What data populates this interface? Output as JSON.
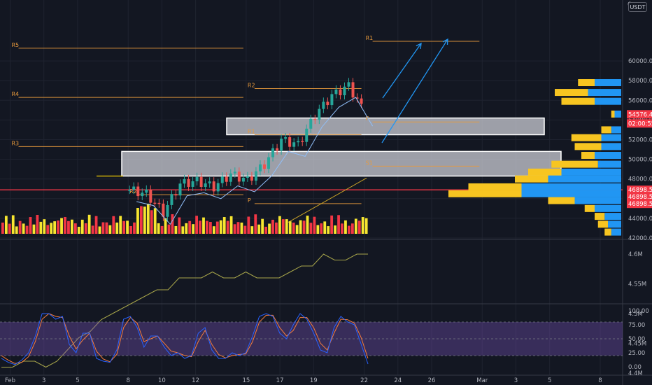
{
  "header": {
    "currency": "USDT"
  },
  "price_axis": {
    "top_tick": "6"
  },
  "chart_data": [
    {
      "type": "candlestick",
      "title": "",
      "x_dates": [
        "Feb 8",
        "Feb 9",
        "Feb 10",
        "Feb 11",
        "Feb 12",
        "Feb 13",
        "Feb 14",
        "Feb 15",
        "Feb 16",
        "Feb 17",
        "Feb 18",
        "Feb 19",
        "Feb 20",
        "Feb 21",
        "Feb 22"
      ],
      "close_path": [
        {
          "date": "Feb 8",
          "value": 46900
        },
        {
          "date": "Feb 9",
          "value": 46500
        },
        {
          "date": "Feb 10",
          "value": 44600
        },
        {
          "date": "Feb 11",
          "value": 47500
        },
        {
          "date": "Feb 12",
          "value": 47800
        },
        {
          "date": "Feb 13",
          "value": 47200
        },
        {
          "date": "Feb 14",
          "value": 48500
        },
        {
          "date": "Feb 15",
          "value": 47900
        },
        {
          "date": "Feb 16",
          "value": 49500
        },
        {
          "date": "Feb 17",
          "value": 52000
        },
        {
          "date": "Feb 18",
          "value": 51500
        },
        {
          "date": "Feb 19",
          "value": 54500
        },
        {
          "date": "Feb 20",
          "value": 56500
        },
        {
          "date": "Feb 21",
          "value": 57500
        },
        {
          "date": "Feb 22",
          "value": 54576.48
        }
      ],
      "ylim": [
        42000,
        62000
      ],
      "price_ticks": [
        "42000.00",
        "44000.00",
        "46000.00",
        "48000.00",
        "50000.00",
        "52000.00",
        "54000.00",
        "56000.00",
        "58000.00",
        "60000.00"
      ],
      "x_ticks": [
        {
          "label": "Feb",
          "date": "Feb 1"
        },
        {
          "label": "3",
          "date": "Feb 3"
        },
        {
          "label": "5",
          "date": "Feb 5"
        },
        {
          "label": "8",
          "date": "Feb 8"
        },
        {
          "label": "10",
          "date": "Feb 10"
        },
        {
          "label": "12",
          "date": "Feb 12"
        },
        {
          "label": "15",
          "date": "Feb 15"
        },
        {
          "label": "17",
          "date": "Feb 17"
        },
        {
          "label": "19",
          "date": "Feb 19"
        },
        {
          "label": "22",
          "date": "Feb 22"
        },
        {
          "label": "24",
          "date": "Feb 24"
        },
        {
          "label": "26",
          "date": "Feb 26"
        },
        {
          "label": "Mar",
          "date": "Mar 1"
        },
        {
          "label": "3",
          "date": "Mar 3"
        },
        {
          "label": "5",
          "date": "Mar 5"
        },
        {
          "label": "8",
          "date": "Mar 8"
        }
      ],
      "last_price": "54576.48",
      "countdown": "02:00:55",
      "support_line": {
        "value": 46898.56,
        "labels": [
          "46898.56",
          "46898.56",
          "46898.56"
        ]
      },
      "zones": [
        {
          "name": "upper-zone",
          "from_date": "Feb 15",
          "to_date": "Mar 4",
          "low": 52500,
          "high": 54200
        },
        {
          "name": "lower-zone",
          "from_date": "Feb 8",
          "to_date": "Mar 4",
          "low": 48300,
          "high": 50800
        }
      ],
      "pivot_levels": [
        {
          "label": "R5",
          "value": 61300,
          "from_date": "Feb 1",
          "to_date": "Feb 15"
        },
        {
          "label": "R4",
          "value": 56300,
          "from_date": "Feb 1",
          "to_date": "Feb 15"
        },
        {
          "label": "R3",
          "value": 51300,
          "from_date": "Feb 1",
          "to_date": "Feb 15"
        },
        {
          "label": "R2",
          "value": 46400,
          "from_date": "Feb 8",
          "to_date": "Feb 15"
        },
        {
          "label": "P",
          "value": 45500,
          "from_date": "Feb 15",
          "to_date": "Feb 22"
        },
        {
          "label": "R2",
          "value": 57200,
          "from_date": "Feb 15",
          "to_date": "Feb 22"
        },
        {
          "label": "R1",
          "value": 52500,
          "from_date": "Feb 15",
          "to_date": "Feb 22"
        },
        {
          "label": "R1",
          "value": 62000,
          "from_date": "Feb 22",
          "to_date": "Mar 1"
        },
        {
          "label": "P",
          "value": 53800,
          "from_date": "Feb 22",
          "to_date": "Mar 1"
        },
        {
          "label": "S1",
          "value": 49300,
          "from_date": "Feb 22",
          "to_date": "Mar 1"
        }
      ],
      "volume_profile": [
        {
          "price": 57800,
          "buy": 400,
          "sell": 250
        },
        {
          "price": 56800,
          "buy": 500,
          "sell": 500
        },
        {
          "price": 55900,
          "buy": 400,
          "sell": 500
        },
        {
          "price": 54600,
          "buy": 100,
          "sell": 50
        },
        {
          "price": 53000,
          "buy": 150,
          "sell": 150
        },
        {
          "price": 52200,
          "buy": 300,
          "sell": 450
        },
        {
          "price": 51300,
          "buy": 300,
          "sell": 400
        },
        {
          "price": 50400,
          "buy": 400,
          "sell": 200
        },
        {
          "price": 49500,
          "buy": 350,
          "sell": 700
        },
        {
          "price": 48700,
          "buy": 900,
          "sell": 500
        },
        {
          "price": 48000,
          "buy": 1100,
          "sell": 500
        },
        {
          "price": 47200,
          "buy": 1500,
          "sell": 800
        },
        {
          "price": 46500,
          "buy": 1500,
          "sell": 1100
        },
        {
          "price": 45800,
          "buy": 700,
          "sell": 400
        },
        {
          "price": 45000,
          "buy": 400,
          "sell": 150
        },
        {
          "price": 44200,
          "buy": 250,
          "sell": 150
        },
        {
          "price": 43400,
          "buy": 200,
          "sell": 150
        },
        {
          "price": 42600,
          "buy": 150,
          "sell": 100
        }
      ]
    },
    {
      "type": "line",
      "title": "",
      "ylim": [
        4.38,
        4.62
      ],
      "y_ticks": [
        "4.6M",
        "4.55M",
        "4.5M",
        "4.45M",
        "4.4M"
      ],
      "values": [
        4.41,
        4.41,
        4.42,
        4.42,
        4.41,
        4.42,
        4.44,
        4.46,
        4.47,
        4.49,
        4.5,
        4.51,
        4.52,
        4.53,
        4.54,
        4.54,
        4.56,
        4.56,
        4.56,
        4.57,
        4.56,
        4.56,
        4.57,
        4.56,
        4.56,
        4.56,
        4.57,
        4.58,
        4.58,
        4.6,
        4.59,
        4.59,
        4.6,
        4.6
      ]
    },
    {
      "type": "line",
      "title": "",
      "ylim": [
        -5,
        105
      ],
      "y_ticks": [
        "100.00",
        "75.00",
        "50.00",
        "25.00",
        "0.00"
      ],
      "band": [
        20,
        80
      ],
      "k_values": [
        15,
        8,
        4,
        12,
        25,
        55,
        95,
        95,
        85,
        90,
        40,
        25,
        60,
        60,
        15,
        10,
        8,
        30,
        85,
        90,
        70,
        35,
        55,
        55,
        35,
        20,
        25,
        15,
        20,
        60,
        70,
        30,
        15,
        15,
        25,
        20,
        25,
        55,
        90,
        95,
        90,
        60,
        50,
        75,
        95,
        85,
        60,
        30,
        25,
        70,
        90,
        80,
        75,
        40,
        5
      ],
      "d_values": [
        20,
        12,
        6,
        8,
        18,
        45,
        85,
        95,
        90,
        88,
        55,
        32,
        48,
        60,
        28,
        14,
        9,
        22,
        70,
        88,
        78,
        45,
        50,
        55,
        42,
        28,
        25,
        20,
        18,
        45,
        65,
        40,
        22,
        16,
        20,
        22,
        23,
        45,
        80,
        92,
        92,
        70,
        55,
        65,
        88,
        88,
        70,
        42,
        30,
        60,
        85,
        84,
        78,
        52,
        15
      ]
    }
  ]
}
